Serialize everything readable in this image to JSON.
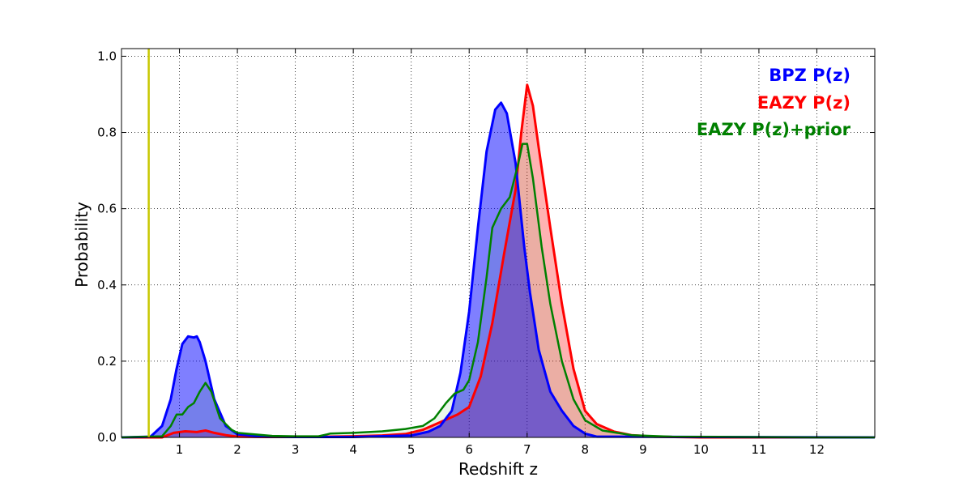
{
  "chart_data": {
    "type": "area",
    "xlabel": "Redshift z",
    "ylabel": "Probability",
    "xlim": [
      0,
      13
    ],
    "ylim": [
      0,
      1.02
    ],
    "x_ticks": [
      1,
      2,
      3,
      4,
      5,
      6,
      7,
      8,
      9,
      10,
      11,
      12
    ],
    "y_ticks": [
      0.0,
      0.2,
      0.4,
      0.6,
      0.8,
      1.0
    ],
    "x_tick_labels": [
      "1",
      "2",
      "3",
      "4",
      "5",
      "6",
      "7",
      "8",
      "9",
      "10",
      "11",
      "12"
    ],
    "y_tick_labels": [
      "0.0",
      "0.2",
      "0.4",
      "0.6",
      "0.8",
      "1.0"
    ],
    "grid": true,
    "legend_position": "top-right",
    "vertical_line": {
      "x": 0.47,
      "color": "#c8c800"
    },
    "series": [
      {
        "name": "EAZY P(z)",
        "color": "#ff0000",
        "fill": "#ff0000",
        "fill_opacity": 0.3,
        "x": [
          0,
          0.7,
          0.9,
          1.1,
          1.3,
          1.45,
          1.6,
          1.8,
          2.0,
          2.5,
          3.0,
          3.5,
          4.0,
          4.5,
          4.9,
          5.2,
          5.5,
          5.8,
          6.0,
          6.2,
          6.4,
          6.6,
          6.8,
          6.9,
          7.0,
          7.1,
          7.2,
          7.4,
          7.6,
          7.8,
          8.0,
          8.2,
          8.5,
          8.8,
          9.2,
          10,
          13
        ],
        "y": [
          0,
          0.0,
          0.012,
          0.016,
          0.014,
          0.018,
          0.012,
          0.006,
          0.002,
          0.001,
          0.001,
          0.002,
          0.003,
          0.005,
          0.009,
          0.02,
          0.04,
          0.06,
          0.08,
          0.16,
          0.3,
          0.48,
          0.65,
          0.8,
          0.925,
          0.87,
          0.76,
          0.55,
          0.35,
          0.18,
          0.07,
          0.035,
          0.015,
          0.006,
          0.002,
          0.0,
          0
        ]
      },
      {
        "name": "BPZ P(z)",
        "color": "#0000ff",
        "fill": "#0000ff",
        "fill_opacity": 0.5,
        "x": [
          0,
          0.5,
          0.7,
          0.85,
          0.95,
          1.05,
          1.15,
          1.25,
          1.3,
          1.35,
          1.45,
          1.6,
          1.8,
          2.0,
          2.5,
          3.0,
          4.0,
          5.0,
          5.3,
          5.5,
          5.7,
          5.85,
          6.0,
          6.15,
          6.3,
          6.45,
          6.55,
          6.65,
          6.8,
          6.95,
          7.05,
          7.2,
          7.4,
          7.6,
          7.8,
          8.0,
          8.2,
          13
        ],
        "y": [
          0,
          0.002,
          0.03,
          0.1,
          0.18,
          0.245,
          0.265,
          0.262,
          0.265,
          0.25,
          0.2,
          0.1,
          0.03,
          0.008,
          0.002,
          0.001,
          0.001,
          0.005,
          0.015,
          0.03,
          0.07,
          0.17,
          0.33,
          0.55,
          0.75,
          0.86,
          0.878,
          0.85,
          0.72,
          0.5,
          0.38,
          0.23,
          0.12,
          0.07,
          0.03,
          0.01,
          0.002,
          0
        ]
      },
      {
        "name": "EAZY P(z)+prior",
        "color": "#008000",
        "fill": "#008000",
        "fill_opacity": 0.08,
        "x": [
          0,
          0.7,
          0.85,
          0.95,
          1.05,
          1.15,
          1.25,
          1.35,
          1.45,
          1.55,
          1.7,
          1.9,
          2.0,
          2.3,
          2.6,
          3.0,
          3.4,
          3.55,
          3.6,
          4.0,
          4.5,
          4.9,
          5.2,
          5.4,
          5.6,
          5.75,
          5.9,
          6.0,
          6.15,
          6.3,
          6.4,
          6.55,
          6.7,
          6.85,
          6.92,
          7.0,
          7.1,
          7.25,
          7.4,
          7.6,
          7.8,
          8.0,
          8.3,
          8.8,
          9.5,
          10.5,
          12,
          13
        ],
        "y": [
          0,
          0.003,
          0.03,
          0.06,
          0.06,
          0.08,
          0.09,
          0.12,
          0.143,
          0.12,
          0.05,
          0.02,
          0.012,
          0.008,
          0.004,
          0.003,
          0.003,
          0.008,
          0.01,
          0.012,
          0.016,
          0.022,
          0.03,
          0.05,
          0.09,
          0.115,
          0.125,
          0.15,
          0.25,
          0.42,
          0.55,
          0.6,
          0.63,
          0.72,
          0.77,
          0.77,
          0.68,
          0.5,
          0.35,
          0.2,
          0.1,
          0.045,
          0.018,
          0.006,
          0.002,
          0.001,
          0.0,
          0
        ]
      }
    ],
    "legend": [
      "BPZ P(z)",
      "EAZY P(z)",
      "EAZY P(z)+prior"
    ]
  }
}
